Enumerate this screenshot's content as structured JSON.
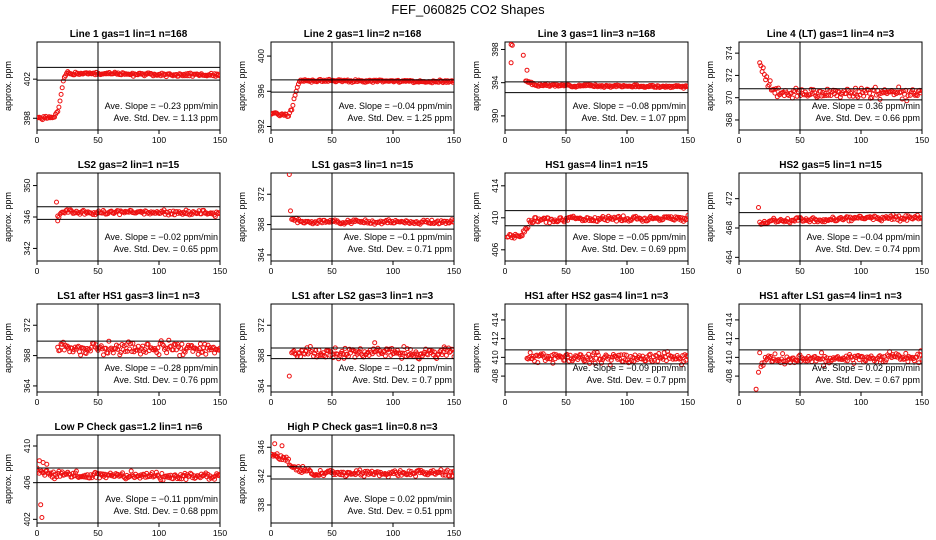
{
  "figure": {
    "title": "FEF_060825  CO2 Shapes",
    "xlabel": "",
    "ylabel": "approx. ppm",
    "slope_prefix": "Ave. Slope = ",
    "slope_unit": "ppm/min",
    "std_prefix": "Ave. Std. Dev. = ",
    "std_unit": "ppm",
    "point_color": "#ee1111",
    "line_color": "#000000"
  },
  "chart_data": [
    {
      "type": "scatter",
      "title": "Line 1 gas=1 lin=1 n=168",
      "xlim": [
        0,
        150
      ],
      "ylim": [
        396.8,
        405.8
      ],
      "yticks": [
        398,
        402
      ],
      "xticks": [
        0,
        50,
        100,
        150
      ],
      "hlines": [
        403.2,
        401.9
      ],
      "vline": 50,
      "slope": "−0.23",
      "std": "1.13",
      "series": {
        "start": 0,
        "end": 150,
        "n": 168,
        "segments": [
          [
            0,
            398
          ],
          [
            14,
            398.1
          ],
          [
            17,
            398.6
          ],
          [
            20,
            400.5
          ],
          [
            22,
            402.1
          ],
          [
            25,
            402.6
          ],
          [
            150,
            402.4
          ]
        ],
        "noise": 0.09,
        "seed": 1
      }
    },
    {
      "type": "scatter",
      "title": "Line 2 gas=1 lin=2 n=168",
      "xlim": [
        0,
        150
      ],
      "ylim": [
        391.6,
        401.6
      ],
      "yticks": [
        392,
        396,
        400
      ],
      "xticks": [
        0,
        50,
        100,
        150
      ],
      "hlines": [
        397.3,
        395.9
      ],
      "vline": 50,
      "slope": "−0.04",
      "std": "1.25",
      "series": {
        "start": 0,
        "end": 150,
        "n": 168,
        "segments": [
          [
            0,
            393.5
          ],
          [
            14,
            393.3
          ],
          [
            17,
            393.9
          ],
          [
            20,
            395.7
          ],
          [
            23,
            397.2
          ],
          [
            150,
            397.1
          ]
        ],
        "noise": 0.08,
        "seed": 2
      }
    },
    {
      "type": "scatter",
      "title": "Line 3 gas=1 lin=3 n=168",
      "xlim": [
        0,
        150
      ],
      "ylim": [
        388.3,
        398.9
      ],
      "yticks": [
        390,
        394,
        398
      ],
      "xticks": [
        0,
        50,
        100,
        150
      ],
      "hlines": [
        394.1,
        392.8
      ],
      "vline": 50,
      "slope": "−0.08",
      "std": "1.07",
      "series": {
        "start": 17,
        "end": 150,
        "n": 150,
        "segments": [
          [
            17,
            394.2
          ],
          [
            25,
            393.7
          ],
          [
            150,
            393.5
          ]
        ],
        "noise": 0.07,
        "seed": 3,
        "extra": [
          [
            5,
            398.6
          ],
          [
            6,
            398.5
          ],
          [
            5,
            396.4
          ],
          [
            15,
            397.3
          ],
          [
            18,
            395.5
          ]
        ]
      }
    },
    {
      "type": "scatter",
      "title": "Line 4 (LT) gas=1 lin=4 n=3",
      "xlim": [
        0,
        150
      ],
      "ylim": [
        367.1,
        375
      ],
      "yticks": [
        368,
        370,
        372,
        374
      ],
      "xticks": [
        0,
        50,
        100,
        150
      ],
      "hlines": [
        370.8,
        369.8
      ],
      "vline": 50,
      "slope": "0.36",
      "std": "0.66",
      "series": {
        "start": 17,
        "end": 150,
        "n": 140,
        "segments": [
          [
            17,
            373.2
          ],
          [
            20,
            372.3
          ],
          [
            25,
            371.1
          ],
          [
            35,
            370.4
          ],
          [
            150,
            370.4
          ]
        ],
        "noise": 0.25,
        "seed": 4
      }
    },
    {
      "type": "scatter",
      "title": "LS2 gas=2 lin=1 n=15",
      "xlim": [
        0,
        150
      ],
      "ylim": [
        340.4,
        351.6
      ],
      "yticks": [
        342,
        346,
        350
      ],
      "xticks": [
        0,
        50,
        100,
        150
      ],
      "hlines": [
        347.3,
        345.7
      ],
      "vline": 50,
      "slope": "−0.02",
      "std": "0.65",
      "series": {
        "start": 17,
        "end": 150,
        "n": 140,
        "segments": [
          [
            17,
            345.9
          ],
          [
            20,
            346.6
          ],
          [
            150,
            346.5
          ]
        ],
        "noise": 0.16,
        "seed": 5,
        "extra": [
          [
            16,
            347.9
          ],
          [
            17,
            345.5
          ]
        ]
      }
    },
    {
      "type": "scatter",
      "title": "LS1 gas=3 lin=1 n=15",
      "xlim": [
        0,
        150
      ],
      "ylim": [
        363.2,
        374.8
      ],
      "yticks": [
        364,
        368,
        372
      ],
      "xticks": [
        0,
        50,
        100,
        150
      ],
      "hlines": [
        369.1,
        367.4
      ],
      "vline": 50,
      "slope": "−0.1",
      "std": "0.71",
      "series": {
        "start": 17,
        "end": 150,
        "n": 140,
        "segments": [
          [
            17,
            368.8
          ],
          [
            22,
            368.4
          ],
          [
            150,
            368.3
          ]
        ],
        "noise": 0.14,
        "seed": 6,
        "extra": [
          [
            15,
            374.6
          ],
          [
            16,
            369.8
          ]
        ]
      }
    },
    {
      "type": "scatter",
      "title": "HS1 gas=4 lin=1 n=15",
      "xlim": [
        0,
        150
      ],
      "ylim": [
        404.6,
        415.6
      ],
      "yticks": [
        406,
        410,
        414
      ],
      "xticks": [
        0,
        50,
        100,
        150
      ],
      "hlines": [
        410.9,
        409
      ],
      "vline": 50,
      "slope": "−0.05",
      "std": "0.69",
      "series": {
        "start": 2,
        "end": 150,
        "n": 160,
        "segments": [
          [
            2,
            407.8
          ],
          [
            12,
            407.7
          ],
          [
            16,
            408.3
          ],
          [
            20,
            409.5
          ],
          [
            30,
            409.8
          ],
          [
            150,
            410
          ]
        ],
        "noise": 0.18,
        "seed": 7
      }
    },
    {
      "type": "scatter",
      "title": "HS2 gas=5 lin=1 n=15",
      "xlim": [
        0,
        150
      ],
      "ylim": [
        463.5,
        475.5
      ],
      "yticks": [
        464,
        468,
        472
      ],
      "xticks": [
        0,
        50,
        100,
        150
      ],
      "hlines": [
        470.1,
        468.3
      ],
      "vline": 50,
      "slope": "−0.04",
      "std": "0.74",
      "series": {
        "start": 18,
        "end": 150,
        "n": 140,
        "segments": [
          [
            18,
            468.4
          ],
          [
            22,
            468.9
          ],
          [
            150,
            469.5
          ]
        ],
        "noise": 0.18,
        "seed": 8,
        "extra": [
          [
            16,
            470.8
          ],
          [
            17,
            468.8
          ]
        ]
      }
    },
    {
      "type": "scatter",
      "title": "LS1 after HS1 gas=3 lin=1 n=3",
      "xlim": [
        0,
        150
      ],
      "ylim": [
        363.2,
        374.8
      ],
      "yticks": [
        364,
        368,
        372
      ],
      "xticks": [
        0,
        50,
        100,
        150
      ],
      "hlines": [
        369.9,
        367.7
      ],
      "vline": 50,
      "slope": "−0.28",
      "std": "0.76",
      "series": {
        "start": 17,
        "end": 150,
        "n": 150,
        "segments": [
          [
            17,
            369
          ],
          [
            150,
            368.8
          ]
        ],
        "noise": 0.45,
        "seed": 9
      }
    },
    {
      "type": "scatter",
      "title": "LS1 after LS2 gas=3 lin=1 n=3",
      "xlim": [
        0,
        150
      ],
      "ylim": [
        363.2,
        374.8
      ],
      "yticks": [
        364,
        368,
        372
      ],
      "xticks": [
        0,
        50,
        100,
        150
      ],
      "hlines": [
        369,
        367.6
      ],
      "vline": 50,
      "slope": "−0.12",
      "std": "0.7",
      "series": {
        "start": 17,
        "end": 150,
        "n": 150,
        "segments": [
          [
            17,
            368.4
          ],
          [
            150,
            368.3
          ]
        ],
        "noise": 0.35,
        "seed": 10,
        "extra": [
          [
            15,
            365.3
          ],
          [
            85,
            369.7
          ]
        ]
      }
    },
    {
      "type": "scatter",
      "title": "HS1 after HS2 gas=4 lin=1 n=3",
      "xlim": [
        0,
        150
      ],
      "ylim": [
        406.3,
        415.7
      ],
      "yticks": [
        408,
        410,
        412,
        414
      ],
      "xticks": [
        0,
        50,
        100,
        150
      ],
      "hlines": [
        410.8,
        409.3
      ],
      "vline": 50,
      "slope": "−0.09",
      "std": "0.7",
      "series": {
        "start": 18,
        "end": 150,
        "n": 150,
        "segments": [
          [
            18,
            410
          ],
          [
            150,
            409.9
          ]
        ],
        "noise": 0.28,
        "seed": 11
      }
    },
    {
      "type": "scatter",
      "title": "HS1 after LS1 gas=4 lin=1 n=3",
      "xlim": [
        0,
        150
      ],
      "ylim": [
        406.3,
        415.7
      ],
      "yticks": [
        408,
        410,
        412,
        414
      ],
      "xticks": [
        0,
        50,
        100,
        150
      ],
      "hlines": [
        410.8,
        409.3
      ],
      "vline": 50,
      "slope": "0.02",
      "std": "0.67",
      "series": {
        "start": 18,
        "end": 150,
        "n": 150,
        "segments": [
          [
            18,
            409.2
          ],
          [
            25,
            409.8
          ],
          [
            150,
            410
          ]
        ],
        "noise": 0.28,
        "seed": 12,
        "extra": [
          [
            14,
            406.6
          ],
          [
            16,
            408.4
          ],
          [
            17,
            410.5
          ]
        ]
      }
    },
    {
      "type": "scatter",
      "title": "Low P Check gas=1.2 lin=1 n=6",
      "xlim": [
        0,
        150
      ],
      "ylim": [
        401.6,
        411.2
      ],
      "yticks": [
        402,
        406,
        410
      ],
      "xticks": [
        0,
        50,
        100,
        150
      ],
      "hlines": [
        407.6,
        406
      ],
      "vline": 50,
      "slope": "−0.11",
      "std": "0.68",
      "series": {
        "start": 0,
        "end": 150,
        "n": 168,
        "segments": [
          [
            0,
            407.4
          ],
          [
            12,
            406.9
          ],
          [
            150,
            406.6
          ]
        ],
        "noise": 0.2,
        "seed": 13,
        "extra": [
          [
            3,
            403.6
          ],
          [
            4,
            402.2
          ],
          [
            2,
            408.4
          ],
          [
            5,
            408.2
          ],
          [
            8,
            408
          ]
        ]
      }
    },
    {
      "type": "scatter",
      "title": "High P Check gas=1 lin=0.8 n=3",
      "xlim": [
        0,
        150
      ],
      "ylim": [
        335.5,
        347.7
      ],
      "yticks": [
        338,
        342,
        346
      ],
      "xticks": [
        0,
        50,
        100,
        150
      ],
      "hlines": [
        343.3,
        341.6
      ],
      "vline": 50,
      "slope": "0.02",
      "std": "0.51",
      "series": {
        "start": 0,
        "end": 150,
        "n": 168,
        "segments": [
          [
            0,
            344.9
          ],
          [
            13,
            344.3
          ],
          [
            20,
            342.9
          ],
          [
            40,
            342.4
          ],
          [
            150,
            342.4
          ]
        ],
        "noise": 0.22,
        "seed": 14,
        "extra": [
          [
            3,
            346.5
          ],
          [
            9,
            346.2
          ],
          [
            5,
            345.1
          ]
        ]
      }
    }
  ]
}
